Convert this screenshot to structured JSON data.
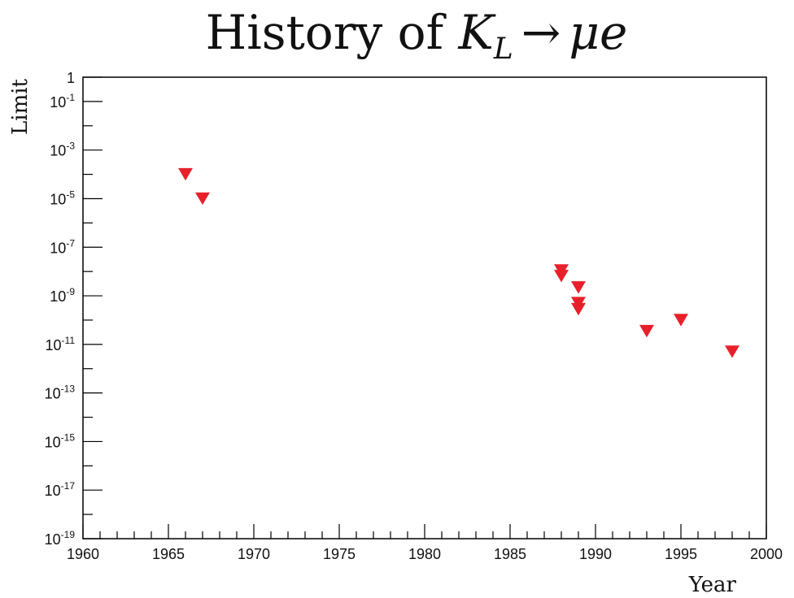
{
  "chart_data": {
    "type": "scatter",
    "title": {
      "prefix": "History of ",
      "formula": "K",
      "subscript": "L",
      "arrow": "→",
      "suffix": "μe"
    },
    "xlabel": "Year",
    "ylabel": "Limit",
    "xlim": [
      1960,
      2000
    ],
    "ylim": [
      1e-19,
      1
    ],
    "yscale": "log",
    "grid": false,
    "x_ticks": [
      "1960",
      "1965",
      "1970",
      "1975",
      "1980",
      "1985",
      "1990",
      "1995",
      "2000"
    ],
    "y_ticks": [
      {
        "base": "1",
        "exp": ""
      },
      {
        "base": "10",
        "exp": "-1"
      },
      {
        "base": "10",
        "exp": "-3"
      },
      {
        "base": "10",
        "exp": "-5"
      },
      {
        "base": "10",
        "exp": "-7"
      },
      {
        "base": "10",
        "exp": "-9"
      },
      {
        "base": "10",
        "exp": "-11"
      },
      {
        "base": "10",
        "exp": "-13"
      },
      {
        "base": "10",
        "exp": "-15"
      },
      {
        "base": "10",
        "exp": "-17"
      },
      {
        "base": "10",
        "exp": "-19"
      }
    ],
    "marker": "triangle-down",
    "marker_color": "#e8202a",
    "points": [
      {
        "x": 1966,
        "y": 0.0001
      },
      {
        "x": 1967,
        "y": 1e-05
      },
      {
        "x": 1988,
        "y": 1.1e-08
      },
      {
        "x": 1988,
        "y": 6.5e-09
      },
      {
        "x": 1989,
        "y": 2.2e-09
      },
      {
        "x": 1989,
        "y": 5e-10
      },
      {
        "x": 1989,
        "y": 2.8e-10
      },
      {
        "x": 1993,
        "y": 3.5e-11
      },
      {
        "x": 1995,
        "y": 1e-10
      },
      {
        "x": 1998,
        "y": 5e-12
      }
    ]
  }
}
